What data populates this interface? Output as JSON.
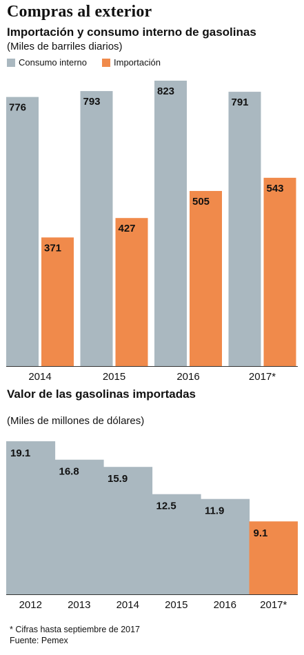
{
  "title": "Compras al exterior",
  "colors": {
    "consumo": "#aab8c0",
    "importacion": "#f08a4b",
    "axis": "#333333"
  },
  "chart_data": [
    {
      "type": "bar",
      "title": "Importación y consumo interno de gasolinas",
      "subtitle": "(Miles de barriles diarios)",
      "categories": [
        "2014",
        "2015",
        "2016",
        "2017*"
      ],
      "series": [
        {
          "name": "Consumo interno",
          "values": [
            776,
            793,
            823,
            791
          ]
        },
        {
          "name": "Importación",
          "values": [
            371,
            427,
            505,
            543
          ]
        }
      ],
      "ylim": [
        0,
        823
      ],
      "legend": "top-left",
      "grid": false
    },
    {
      "type": "bar",
      "title": "Valor de las gasolinas importadas",
      "subtitle": "(Miles de millones de dólares)",
      "categories": [
        "2012",
        "2013",
        "2014",
        "2015",
        "2016",
        "2017*"
      ],
      "values": [
        19.1,
        16.8,
        15.9,
        12.5,
        11.9,
        9.1
      ],
      "ylim": [
        0,
        19.1
      ],
      "grid": false
    }
  ],
  "footnote": "* Cifras hasta septiembre de 2017",
  "source": "Fuente: Pemex"
}
